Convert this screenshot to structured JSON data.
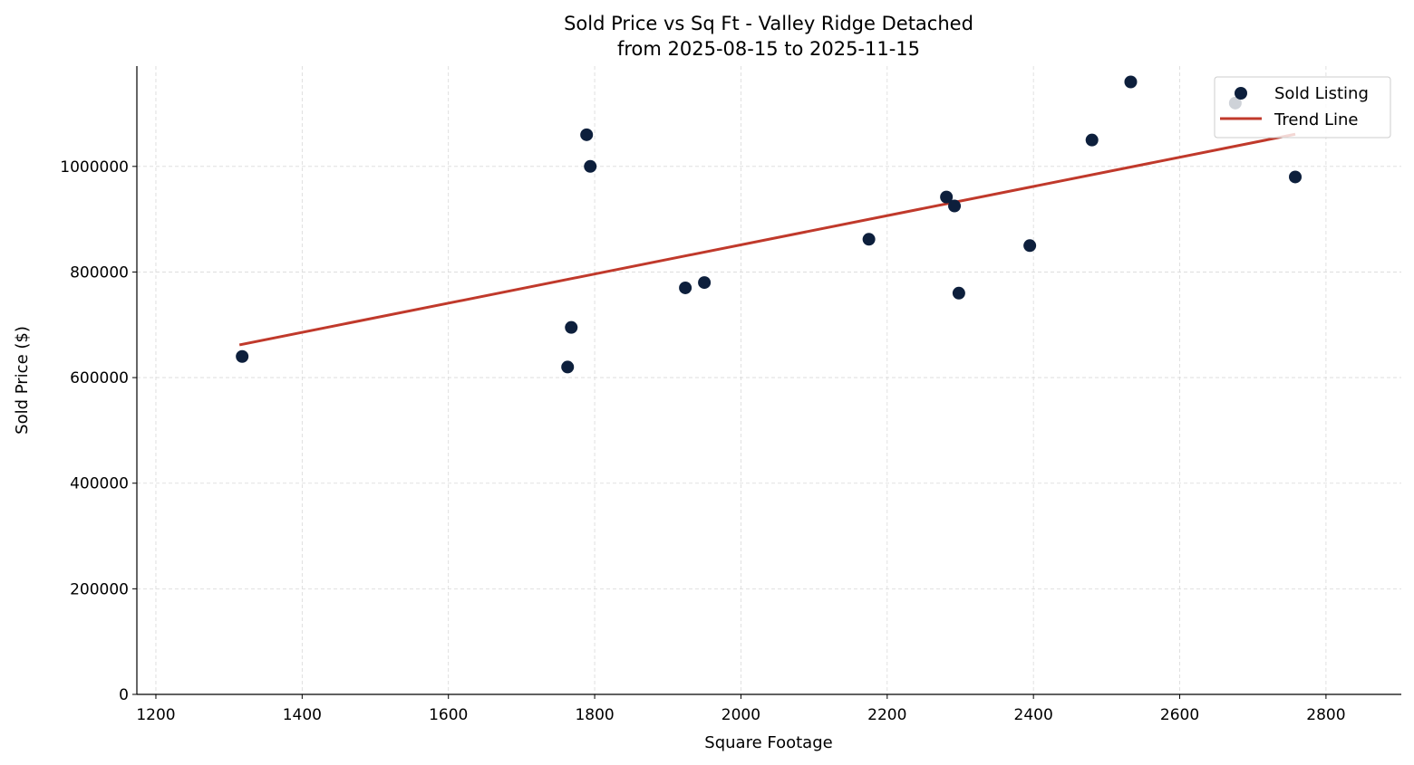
{
  "chart_data": {
    "type": "scatter",
    "title": "Sold Price vs Sq Ft - Valley Ridge Detached",
    "subtitle": "from 2025-08-15 to 2025-11-15",
    "xlabel": "Square Footage",
    "ylabel": "Sold Price ($)",
    "xlim": [
      1174,
      2903
    ],
    "ylim": [
      0,
      1190000
    ],
    "xticks": [
      1200,
      1400,
      1600,
      1800,
      2000,
      2200,
      2400,
      2600,
      2800
    ],
    "yticks": [
      0,
      200000,
      400000,
      600000,
      800000,
      1000000
    ],
    "grid": true,
    "legend_position": "top-right",
    "series": [
      {
        "name": "Sold Listing",
        "type": "scatter",
        "color": "#0d1f3c",
        "points": [
          [
            1318,
            640000
          ],
          [
            1763,
            620000
          ],
          [
            1768,
            695000
          ],
          [
            1789,
            1060000
          ],
          [
            1794,
            1000000
          ],
          [
            1924,
            770000
          ],
          [
            1950,
            780000
          ],
          [
            2175,
            862000
          ],
          [
            2281,
            942000
          ],
          [
            2292,
            925000
          ],
          [
            2298,
            760000
          ],
          [
            2395,
            850000
          ],
          [
            2480,
            1050000
          ],
          [
            2533,
            1160000
          ],
          [
            2676,
            1120000
          ],
          [
            2758,
            980000
          ]
        ]
      },
      {
        "name": "Trend Line",
        "type": "line",
        "color": "#c0392b",
        "points": [
          [
            1318,
            662000
          ],
          [
            2758,
            1061000
          ]
        ]
      }
    ]
  }
}
